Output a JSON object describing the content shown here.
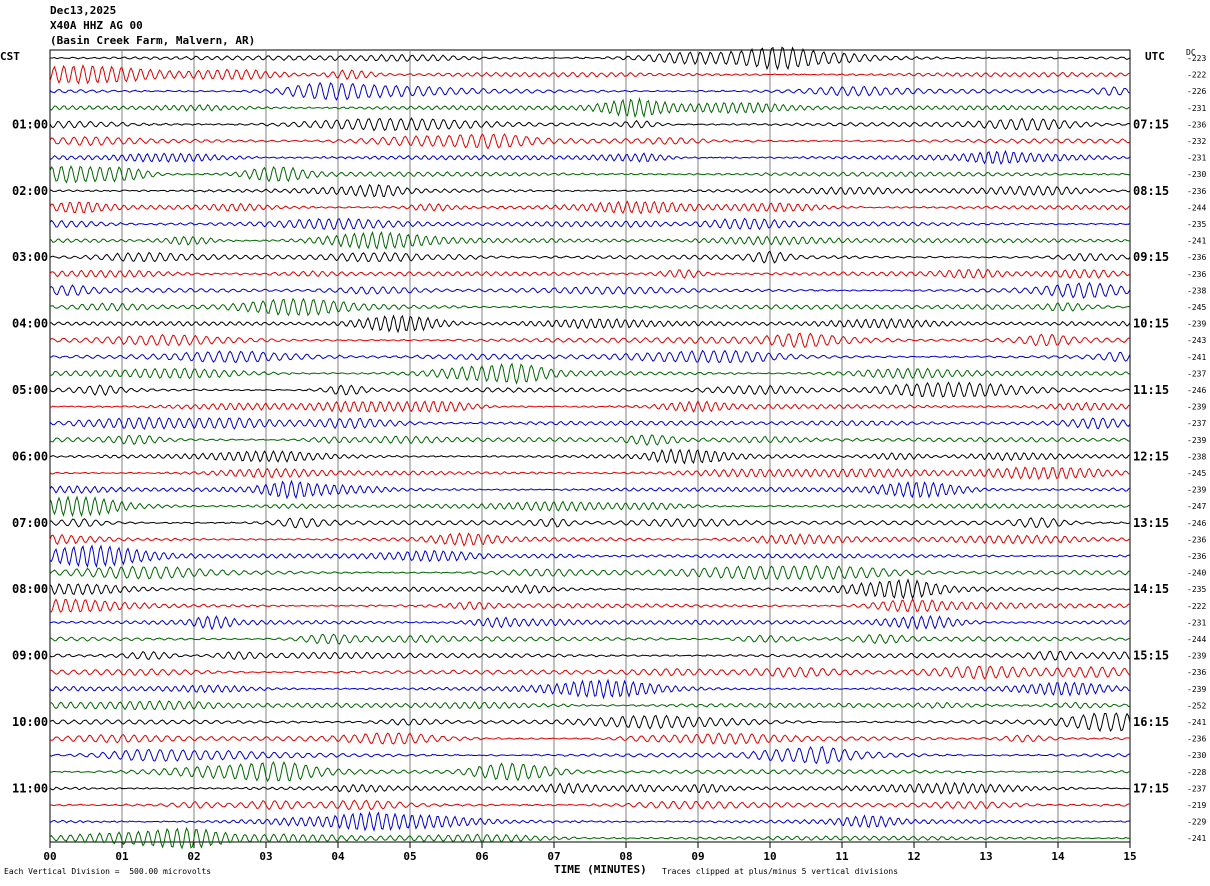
{
  "header": {
    "date": "Dec13,2025",
    "station": "X40A HHZ AG 00",
    "location": "(Basin Creek Farm, Malvern, AR)"
  },
  "left_axis_label": "CST",
  "right_axis_label": "UTC",
  "dc_label": "DC",
  "footer": {
    "scale": "Each Vertical Division =  500.00 microvolts",
    "xlabel": "TIME (MINUTES)",
    "clip_note": "Traces clipped at plus/minus 5 vertical divisions"
  },
  "colors": {
    "cycle": [
      "#000000",
      "#dd0000",
      "#0000cc",
      "#006600"
    ],
    "grid": "#808080"
  },
  "chart_data": {
    "type": "line",
    "title": "",
    "xlabel": "TIME (MINUTES)",
    "xlim": [
      0,
      15
    ],
    "x_ticks": [
      "00",
      "01",
      "02",
      "03",
      "04",
      "05",
      "06",
      "07",
      "08",
      "09",
      "10",
      "11",
      "12",
      "13",
      "14",
      "15"
    ],
    "rows_per_hour": 4,
    "row_count": 48,
    "cst_labels": [
      "01:00",
      "02:00",
      "03:00",
      "04:00",
      "05:00",
      "06:00",
      "07:00",
      "08:00",
      "09:00",
      "10:00",
      "11:00"
    ],
    "utc_labels": [
      "07:15",
      "08:15",
      "09:15",
      "10:15",
      "11:15",
      "12:15",
      "13:15",
      "14:15",
      "15:15",
      "16:15",
      "17:15"
    ],
    "dc_offsets": [
      -223,
      -222,
      -226,
      -231,
      -236,
      -232,
      -231,
      -230,
      -236,
      -244,
      -235,
      -241,
      -236,
      -236,
      -238,
      -245,
      -239,
      -243,
      -241,
      -237,
      -246,
      -239,
      -237,
      -239,
      -238,
      -245,
      -239,
      -247,
      -246,
      -236,
      -236,
      -240,
      -235,
      -222,
      -231,
      -244,
      -239,
      -236,
      -239,
      -252,
      -241,
      -236,
      -230,
      -228,
      -237,
      -219,
      -229,
      -241
    ],
    "series_colors": [
      "black",
      "red",
      "blue",
      "green"
    ]
  }
}
